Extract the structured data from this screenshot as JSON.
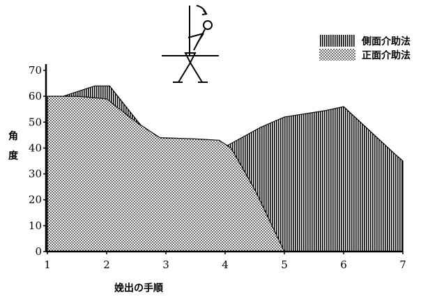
{
  "chart_data": {
    "type": "area",
    "x": [
      1,
      2,
      3,
      4,
      5,
      6,
      7
    ],
    "x_ticks": [
      "1",
      "2",
      "3",
      "4",
      "5",
      "6",
      "7"
    ],
    "y_ticks": [
      "0",
      "10",
      "20",
      "30",
      "40",
      "50",
      "60",
      "70"
    ],
    "ylim": [
      0,
      72
    ],
    "xlim": [
      1,
      7
    ],
    "xlabel": "娩出の手順",
    "ylabel": "角度",
    "series": [
      {
        "name": "側面介助法",
        "pattern": "vertical-lines",
        "points": [
          [
            1,
            58
          ],
          [
            1.8,
            64
          ],
          [
            2.05,
            64
          ],
          [
            2.5,
            51
          ],
          [
            3,
            37
          ],
          [
            3.5,
            38.5
          ],
          [
            4,
            40.5
          ],
          [
            4.6,
            48
          ],
          [
            5,
            52
          ],
          [
            5.7,
            54.5
          ],
          [
            6,
            56
          ],
          [
            6.85,
            38
          ],
          [
            7,
            35
          ],
          [
            7,
            0
          ],
          [
            1,
            0
          ]
        ]
      },
      {
        "name": "正面介助法",
        "pattern": "dots",
        "points": [
          [
            1,
            60
          ],
          [
            1.5,
            60
          ],
          [
            2,
            59
          ],
          [
            2.5,
            50
          ],
          [
            2.9,
            44
          ],
          [
            3.5,
            43.5
          ],
          [
            3.9,
            43
          ],
          [
            4.1,
            40
          ],
          [
            4.5,
            24
          ],
          [
            5,
            0
          ],
          [
            1,
            0
          ]
        ]
      }
    ],
    "legend": {
      "position": "top-right"
    },
    "colors": {
      "ink": "#000000",
      "background": "#ffffff"
    }
  },
  "annotation": {
    "icon": "stick-figure-lifting-icon"
  }
}
